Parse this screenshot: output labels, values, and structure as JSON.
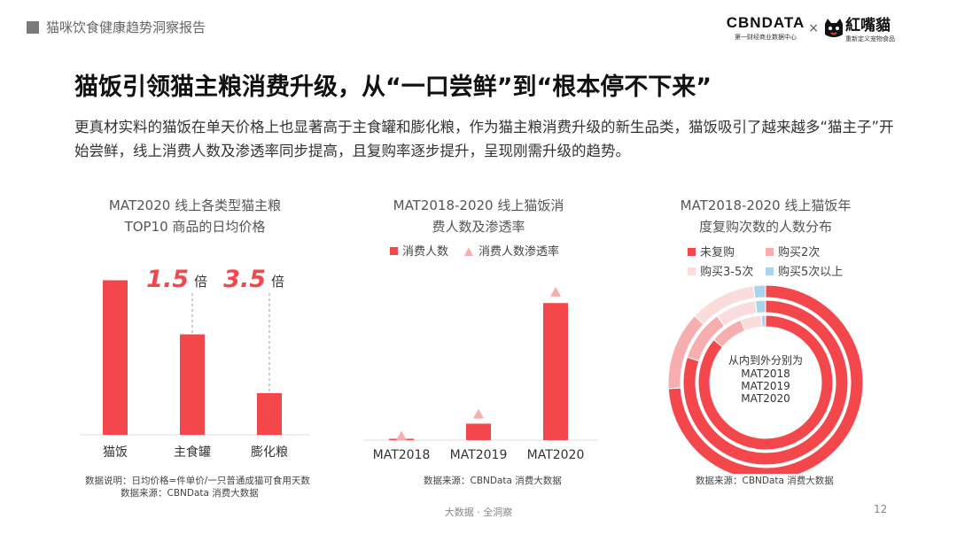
{
  "header": {
    "section": "猫咪饮食健康趋势洞察报告"
  },
  "logo": {
    "cbn": "CBNDATA",
    "cbn_sub": "第一财经商业数据中心",
    "times": "×",
    "hz": "紅嘴貓",
    "hz_sub": "重新定义宠物食品"
  },
  "title": "猫饭引领猫主粮消费升级，从“一口尝鲜”到“根本停不下来”",
  "description": "更真材实料的猫饭在单天价格上也显著高于主食罐和膨化粮，作为猫主粮消费升级的新生品类，猫饭吸引了越来越多“猫主子”开始尝鲜，线上消费人数及渗透率同步提高，且复购率逐步提升，呈现刚需升级的趋势。",
  "colors": {
    "red": "#f4474c",
    "pink": "#f7aeae",
    "lightpink": "#fbdcdc",
    "blue": "#aad4ee"
  },
  "chart_data": [
    {
      "type": "bar",
      "title_line1": "MAT2020 线上各类型猫主粮",
      "title_line2": "TOP10 商品的日均价格",
      "categories": [
        "猫饭",
        "主食罐",
        "膨化粮"
      ],
      "values": [
        100,
        65,
        27
      ],
      "ylim": [
        0,
        110
      ],
      "annotations": [
        {
          "number": "1.5",
          "unit": "倍"
        },
        {
          "number": "3.5",
          "unit": "倍"
        }
      ],
      "source_line1": "数据说明：日均价格=件单价/一只普通成猫可食用天数",
      "source_line2": "数据来源：CBNData 消费大数据"
    },
    {
      "type": "bar",
      "title_line1": "MAT2018-2020 线上猫饭消",
      "title_line2": "费人数及渗透率",
      "legend": [
        "消费人数",
        "消费人数渗透率"
      ],
      "categories": [
        "MAT2018",
        "MAT2019",
        "MAT2020"
      ],
      "series": [
        {
          "name": "消费人数",
          "values": [
            1,
            12,
            100
          ]
        },
        {
          "name": "消费人数渗透率",
          "values": [
            3,
            19,
            108
          ]
        }
      ],
      "ylim": [
        0,
        115
      ],
      "source_line1": "数据来源：CBNData 消费大数据"
    },
    {
      "type": "pie",
      "title_line1": "MAT2018-2020 线上猫饭年",
      "title_line2": "度复购次数的人数分布",
      "legend": [
        "未复购",
        "购买2次",
        "购买3-5次",
        "购买5次以上"
      ],
      "rings": [
        {
          "name": "MAT2018",
          "values": [
            86,
            8,
            5,
            1
          ]
        },
        {
          "name": "MAT2019",
          "values": [
            80,
            10,
            8,
            2
          ]
        },
        {
          "name": "MAT2020",
          "values": [
            74,
            13,
            11,
            2
          ]
        }
      ],
      "center_label": [
        "从内到外分别为",
        "MAT2018",
        "MAT2019",
        "MAT2020"
      ],
      "source_line1": "数据来源：CBNData 消费大数据"
    }
  ],
  "footer": {
    "text": "大数据 · 全洞察",
    "page": "12"
  }
}
